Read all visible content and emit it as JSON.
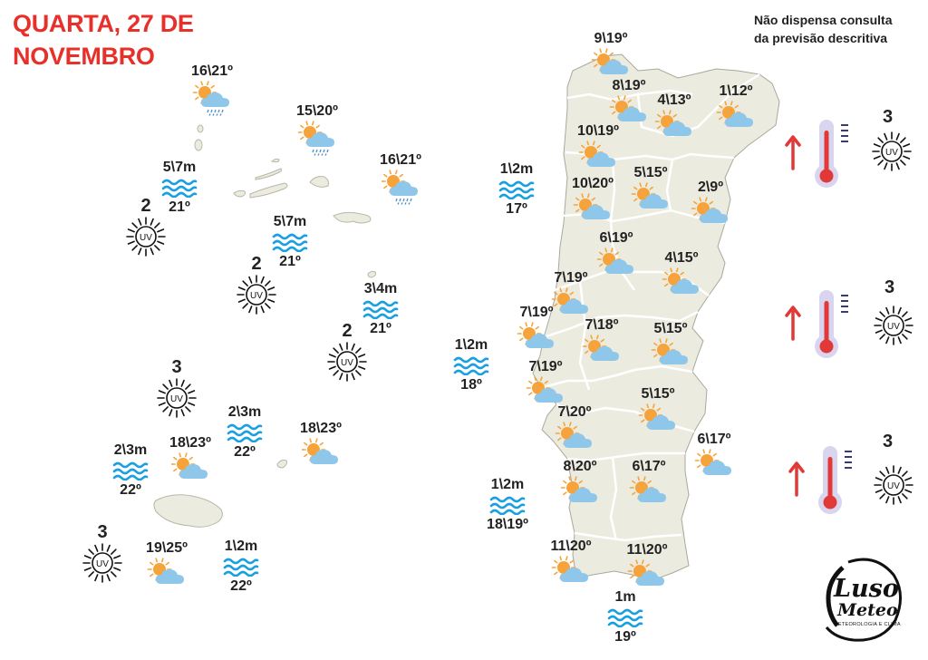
{
  "header": {
    "title_line1": "QUARTA, 27 DE",
    "title_line2": "NOVEMBRO",
    "note_line1": "Não dispensa consulta",
    "note_line2": "da previsão descritiva"
  },
  "colors": {
    "title": "#e8302a",
    "land": "#ecebe0",
    "border": "#ffffff",
    "wave": "#1a9fe0",
    "sun": "#f5a33a",
    "cloud": "#8fc7ea",
    "rain": "#4a8fc9",
    "thermo_red": "#e13838",
    "thermo_bulb": "#d9d5ef"
  },
  "azores": {
    "forecasts": [
      {
        "temps": "16\\21º",
        "icon": "sun-cloud-rain-icon"
      },
      {
        "temps": "15\\20º",
        "icon": "sun-cloud-rain-icon"
      },
      {
        "temps": "16\\21º",
        "icon": "sun-cloud-rain-icon"
      }
    ],
    "sea": [
      {
        "wave": "5\\7m",
        "water": "21º"
      },
      {
        "wave": "5\\7m",
        "water": "21º"
      },
      {
        "wave": "3\\4m",
        "water": "21º"
      }
    ],
    "uv": [
      "2",
      "2",
      "2"
    ]
  },
  "madeira": {
    "forecasts": [
      {
        "temps": "18\\23º",
        "icon": "sun-cloud-icon"
      },
      {
        "temps": "18\\23º",
        "icon": "sun-cloud-icon"
      },
      {
        "temps": "19\\25º",
        "icon": "sun-cloud-icon"
      }
    ],
    "sea": [
      {
        "wave": "2\\3m",
        "water": "22º"
      },
      {
        "wave": "2\\3m",
        "water": "22º"
      },
      {
        "wave": "1\\2m",
        "water": "22º"
      }
    ],
    "uv": [
      "3",
      "3"
    ]
  },
  "mainland": {
    "forecasts": [
      {
        "temps": "9\\19º"
      },
      {
        "temps": "8\\19º"
      },
      {
        "temps": "4\\13º"
      },
      {
        "temps": "1\\12º"
      },
      {
        "temps": "10\\19º"
      },
      {
        "temps": "5\\15º"
      },
      {
        "temps": "10\\20º"
      },
      {
        "temps": "2\\9º"
      },
      {
        "temps": "6\\19º"
      },
      {
        "temps": "4\\15º"
      },
      {
        "temps": "7\\19º"
      },
      {
        "temps": "7\\19º"
      },
      {
        "temps": "7\\18º"
      },
      {
        "temps": "5\\15º"
      },
      {
        "temps": "7\\19º"
      },
      {
        "temps": "5\\15º"
      },
      {
        "temps": "7\\20º"
      },
      {
        "temps": "6\\17º"
      },
      {
        "temps": "8\\20º"
      },
      {
        "temps": "6\\17º"
      },
      {
        "temps": "11\\20º"
      },
      {
        "temps": "11\\20º"
      }
    ],
    "sea": [
      {
        "wave": "1\\2m",
        "water": "17º"
      },
      {
        "wave": "1\\2m",
        "water": "18º"
      },
      {
        "wave": "1\\2m",
        "water": "18\\19º"
      },
      {
        "wave": "1m",
        "water": "19º"
      }
    ],
    "uv": [
      "3",
      "3",
      "3"
    ]
  },
  "logo": {
    "line1": "Luso",
    "line2": "Meteo",
    "tagline": "METEOROLOGIA E CLIMA"
  }
}
